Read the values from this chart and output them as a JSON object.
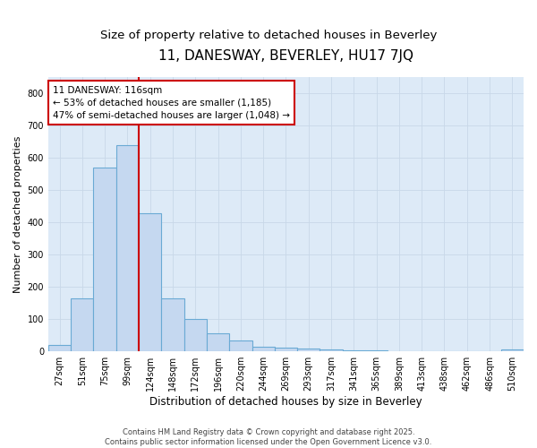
{
  "title": "11, DANESWAY, BEVERLEY, HU17 7JQ",
  "subtitle": "Size of property relative to detached houses in Beverley",
  "xlabel": "Distribution of detached houses by size in Beverley",
  "ylabel": "Number of detached properties",
  "bar_labels": [
    "27sqm",
    "51sqm",
    "75sqm",
    "99sqm",
    "124sqm",
    "148sqm",
    "172sqm",
    "196sqm",
    "220sqm",
    "244sqm",
    "269sqm",
    "293sqm",
    "317sqm",
    "341sqm",
    "365sqm",
    "389sqm",
    "413sqm",
    "438sqm",
    "462sqm",
    "486sqm",
    "510sqm"
  ],
  "bar_values": [
    20,
    165,
    570,
    640,
    430,
    165,
    100,
    55,
    35,
    15,
    12,
    8,
    5,
    3,
    2,
    1,
    1,
    0,
    0,
    0,
    5
  ],
  "bar_color": "#c5d8f0",
  "bar_edge_color": "#6aaad4",
  "vline_x_index": 4.0,
  "vline_color": "#cc0000",
  "annotation_text": "11 DANESWAY: 116sqm\n← 53% of detached houses are smaller (1,185)\n47% of semi-detached houses are larger (1,048) →",
  "annotation_box_color": "#ffffff",
  "annotation_box_edge_color": "#cc0000",
  "ylim": [
    0,
    850
  ],
  "yticks": [
    0,
    100,
    200,
    300,
    400,
    500,
    600,
    700,
    800
  ],
  "grid_color": "#c8d8e8",
  "background_color": "#ddeaf7",
  "footer_text": "Contains HM Land Registry data © Crown copyright and database right 2025.\nContains public sector information licensed under the Open Government Licence v3.0.",
  "title_fontsize": 11,
  "subtitle_fontsize": 9.5,
  "ylabel_fontsize": 8,
  "xlabel_fontsize": 8.5,
  "tick_fontsize": 7,
  "annotation_fontsize": 7.5,
  "footer_fontsize": 6
}
